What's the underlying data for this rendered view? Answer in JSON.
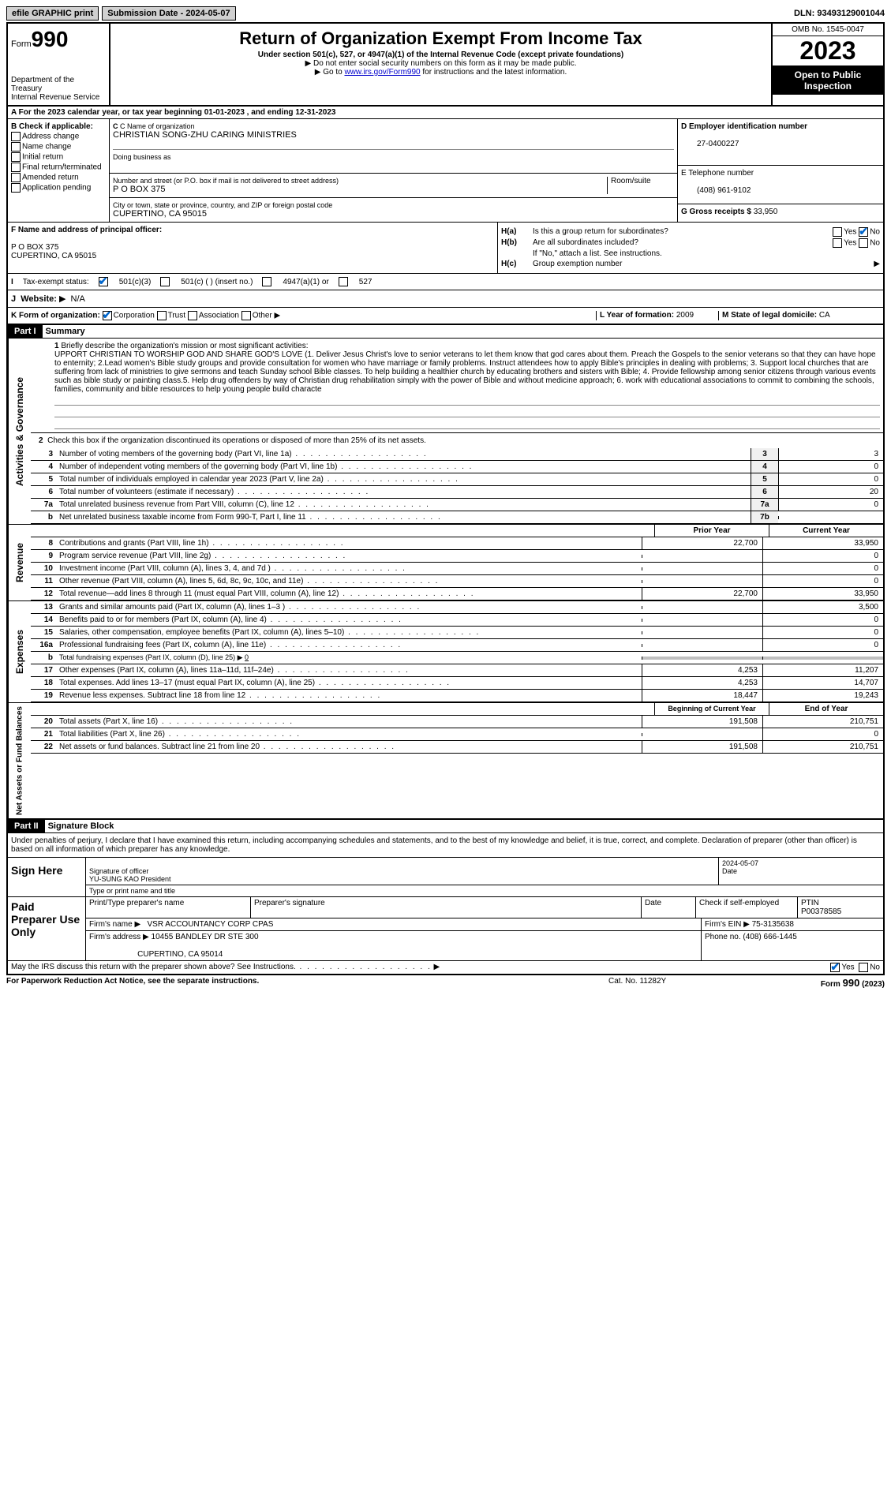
{
  "topbar": {
    "efile": "efile GRAPHIC print",
    "submission": "Submission Date - 2024-05-07",
    "dln": "DLN: 93493129001044"
  },
  "header": {
    "form_prefix": "Form",
    "form_num": "990",
    "dept1": "Department of the Treasury",
    "dept2": "Internal Revenue Service",
    "title": "Return of Organization Exempt From Income Tax",
    "sub1": "Under section 501(c), 527, or 4947(a)(1) of the Internal Revenue Code (except private foundations)",
    "sub2": "Do not enter social security numbers on this form as it may be made public.",
    "sub3_pre": "Go to ",
    "sub3_link": "www.irs.gov/Form990",
    "sub3_post": " for instructions and the latest information.",
    "omb": "OMB No. 1545-0047",
    "year": "2023",
    "open1": "Open to Public",
    "open2": "Inspection"
  },
  "lineA": "A For the 2023 calendar year, or tax year beginning 01-01-2023   , and ending 12-31-2023",
  "colB": {
    "label": "B Check if applicable:",
    "items": [
      "Address change",
      "Name change",
      "Initial return",
      "Final return/terminated",
      "Amended return",
      "Application pending"
    ]
  },
  "colC": {
    "name_label": "C Name of organization",
    "name": "CHRISTIAN SONG-ZHU CARING MINISTRIES",
    "dba_label": "Doing business as",
    "addr_label": "Number and street (or P.O. box if mail is not delivered to street address)",
    "addr": "P O BOX 375",
    "room_label": "Room/suite",
    "city_label": "City or town, state or province, country, and ZIP or foreign postal code",
    "city": "CUPERTINO, CA  95015"
  },
  "colD": {
    "ein_label": "D Employer identification number",
    "ein": "27-0400227",
    "tel_label": "E Telephone number",
    "tel": "(408) 961-9102",
    "gross_label": "G Gross receipts $",
    "gross": "33,950"
  },
  "rowF": {
    "label": "F Name and address of principal officer:",
    "line1": "P O BOX 375",
    "line2": "CUPERTINO, CA  95015"
  },
  "rowH": {
    "ha_label": "H(a)",
    "ha_text": "Is this a group return for subordinates?",
    "hb_label": "H(b)",
    "hb_text": "Are all subordinates included?",
    "hb_note": "If \"No,\" attach a list. See instructions.",
    "hc_label": "H(c)",
    "hc_text": "Group exemption number",
    "yes": "Yes",
    "no": "No"
  },
  "rowI": {
    "label": "I",
    "text": "Tax-exempt status:",
    "opt1": "501(c)(3)",
    "opt2": "501(c) (  ) (insert no.)",
    "opt3": "4947(a)(1) or",
    "opt4": "527"
  },
  "rowJ": {
    "label": "J",
    "text": "Website:",
    "val": "N/A"
  },
  "rowK": {
    "label": "K Form of organization:",
    "corp": "Corporation",
    "trust": "Trust",
    "assoc": "Association",
    "other": "Other",
    "l_label": "L Year of formation:",
    "l_val": "2009",
    "m_label": "M State of legal domicile:",
    "m_val": "CA"
  },
  "part1": {
    "header": "Part I",
    "title": "Summary",
    "side_ag": "Activities & Governance",
    "side_rev": "Revenue",
    "side_exp": "Expenses",
    "side_net": "Net Assets or Fund Balances",
    "line1_label": "1",
    "line1_text": "Briefly describe the organization's mission or most significant activities:",
    "mission": "UPPORT CHRISTIAN TO WORSHIP GOD AND SHARE GOD'S LOVE (1. Deliver Jesus Christ's love to senior veterans to let them know that god cares about them. Preach the Gospels to the senior veterans so that they can have hope to enternity; 2.Lead women's Bible study groups and provide consultation for women who have marriage or family problems. Instruct attendees how to apply Bible's principles in dealing with problems; 3. Support local churches that are suffering from lack of ministries to give sermons and teach Sunday school Bible classes. To help building a healthier church by educating brothers and sisters with Bible; 4. Provide fellowship among senior citizens through various events such as bible study or painting class.5. Help drug offenders by way of Christian drug rehabilitation simply with the power of Bible and without medicine approach; 6. work with educational associations to commit to combining the schools, families, community and bible resources to help young people build characte",
    "line2": "Check this box      if the organization discontinued its operations or disposed of more than 25% of its net assets.",
    "rows_ag": [
      {
        "n": "3",
        "desc": "Number of voting members of the governing body (Part VI, line 1a)",
        "cn": "3",
        "val": "3"
      },
      {
        "n": "4",
        "desc": "Number of independent voting members of the governing body (Part VI, line 1b)",
        "cn": "4",
        "val": "0"
      },
      {
        "n": "5",
        "desc": "Total number of individuals employed in calendar year 2023 (Part V, line 2a)",
        "cn": "5",
        "val": "0"
      },
      {
        "n": "6",
        "desc": "Total number of volunteers (estimate if necessary)",
        "cn": "6",
        "val": "20"
      },
      {
        "n": "7a",
        "desc": "Total unrelated business revenue from Part VIII, column (C), line 12",
        "cn": "7a",
        "val": "0"
      },
      {
        "n": "b",
        "desc": "Net unrelated business taxable income from Form 990-T, Part I, line 11",
        "cn": "7b",
        "val": ""
      }
    ],
    "hdr_prior": "Prior Year",
    "hdr_current": "Current Year",
    "rows_rev": [
      {
        "n": "8",
        "desc": "Contributions and grants (Part VIII, line 1h)",
        "p": "22,700",
        "c": "33,950"
      },
      {
        "n": "9",
        "desc": "Program service revenue (Part VIII, line 2g)",
        "p": "",
        "c": "0"
      },
      {
        "n": "10",
        "desc": "Investment income (Part VIII, column (A), lines 3, 4, and 7d )",
        "p": "",
        "c": "0"
      },
      {
        "n": "11",
        "desc": "Other revenue (Part VIII, column (A), lines 5, 6d, 8c, 9c, 10c, and 11e)",
        "p": "",
        "c": "0"
      },
      {
        "n": "12",
        "desc": "Total revenue—add lines 8 through 11 (must equal Part VIII, column (A), line 12)",
        "p": "22,700",
        "c": "33,950"
      }
    ],
    "rows_exp": [
      {
        "n": "13",
        "desc": "Grants and similar amounts paid (Part IX, column (A), lines 1–3 )",
        "p": "",
        "c": "3,500"
      },
      {
        "n": "14",
        "desc": "Benefits paid to or for members (Part IX, column (A), line 4)",
        "p": "",
        "c": "0"
      },
      {
        "n": "15",
        "desc": "Salaries, other compensation, employee benefits (Part IX, column (A), lines 5–10)",
        "p": "",
        "c": "0"
      },
      {
        "n": "16a",
        "desc": "Professional fundraising fees (Part IX, column (A), line 11e)",
        "p": "",
        "c": "0"
      }
    ],
    "line16b": "Total fundraising expenses (Part IX, column (D), line 25)",
    "line16b_val": "0",
    "rows_exp2": [
      {
        "n": "17",
        "desc": "Other expenses (Part IX, column (A), lines 11a–11d, 11f–24e)",
        "p": "4,253",
        "c": "11,207"
      },
      {
        "n": "18",
        "desc": "Total expenses. Add lines 13–17 (must equal Part IX, column (A), line 25)",
        "p": "4,253",
        "c": "14,707"
      },
      {
        "n": "19",
        "desc": "Revenue less expenses. Subtract line 18 from line 12",
        "p": "18,447",
        "c": "19,243"
      }
    ],
    "hdr_begin": "Beginning of Current Year",
    "hdr_end": "End of Year",
    "rows_net": [
      {
        "n": "20",
        "desc": "Total assets (Part X, line 16)",
        "p": "191,508",
        "c": "210,751"
      },
      {
        "n": "21",
        "desc": "Total liabilities (Part X, line 26)",
        "p": "",
        "c": "0"
      },
      {
        "n": "22",
        "desc": "Net assets or fund balances. Subtract line 21 from line 20",
        "p": "191,508",
        "c": "210,751"
      }
    ]
  },
  "part2": {
    "header": "Part II",
    "title": "Signature Block",
    "perjury": "Under penalties of perjury, I declare that I have examined this return, including accompanying schedules and statements, and to the best of my knowledge and belief, it is true, correct, and complete. Declaration of preparer (other than officer) is based on all information of which preparer has any knowledge.",
    "sign_here": "Sign Here",
    "sig_officer": "Signature of officer",
    "officer_name": "YU-SUNG KAO President",
    "type_name": "Type or print name and title",
    "date_label": "Date",
    "date_val": "2024-05-07",
    "paid_prep": "Paid Preparer Use Only",
    "prep_name_label": "Print/Type preparer's name",
    "prep_sig_label": "Preparer's signature",
    "check_self": "Check       if self-employed",
    "ptin_label": "PTIN",
    "ptin": "P00378585",
    "firm_name_label": "Firm's name",
    "firm_name": "VSR ACCOUNTANCY CORP CPAS",
    "firm_ein_label": "Firm's EIN",
    "firm_ein": "75-3135638",
    "firm_addr_label": "Firm's address",
    "firm_addr1": "10455 BANDLEY DR STE 300",
    "firm_addr2": "CUPERTINO, CA  95014",
    "phone_label": "Phone no.",
    "phone": "(408) 666-1445",
    "discuss": "May the IRS discuss this return with the preparer shown above? See Instructions.",
    "yes": "Yes",
    "no": "No"
  },
  "footer": {
    "left": "For Paperwork Reduction Act Notice, see the separate instructions.",
    "mid": "Cat. No. 11282Y",
    "right": "Form 990 (2023)"
  }
}
